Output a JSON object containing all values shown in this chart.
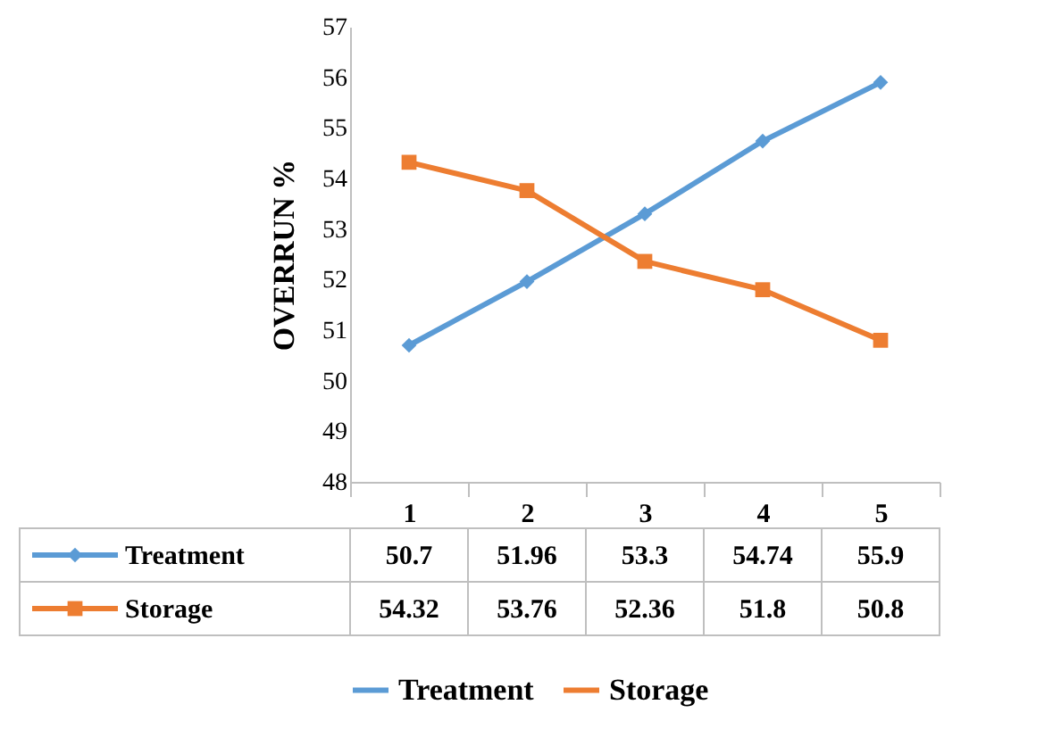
{
  "chart_data": {
    "type": "line",
    "ylabel": "OVERRUN %",
    "categories": [
      "1",
      "2",
      "3",
      "4",
      "5"
    ],
    "series": [
      {
        "name": "Treatment",
        "color": "#5b9bd5",
        "marker": "diamond",
        "values": [
          50.7,
          51.96,
          53.3,
          54.74,
          55.9
        ]
      },
      {
        "name": "Storage",
        "color": "#ed7d31",
        "marker": "square",
        "values": [
          54.32,
          53.76,
          52.36,
          51.8,
          50.8
        ]
      }
    ],
    "ylim": [
      48,
      57
    ],
    "yticks": [
      48,
      49,
      50,
      51,
      52,
      53,
      54,
      55,
      56,
      57
    ],
    "data_labels": true,
    "legend": "bottom",
    "grid": false
  }
}
